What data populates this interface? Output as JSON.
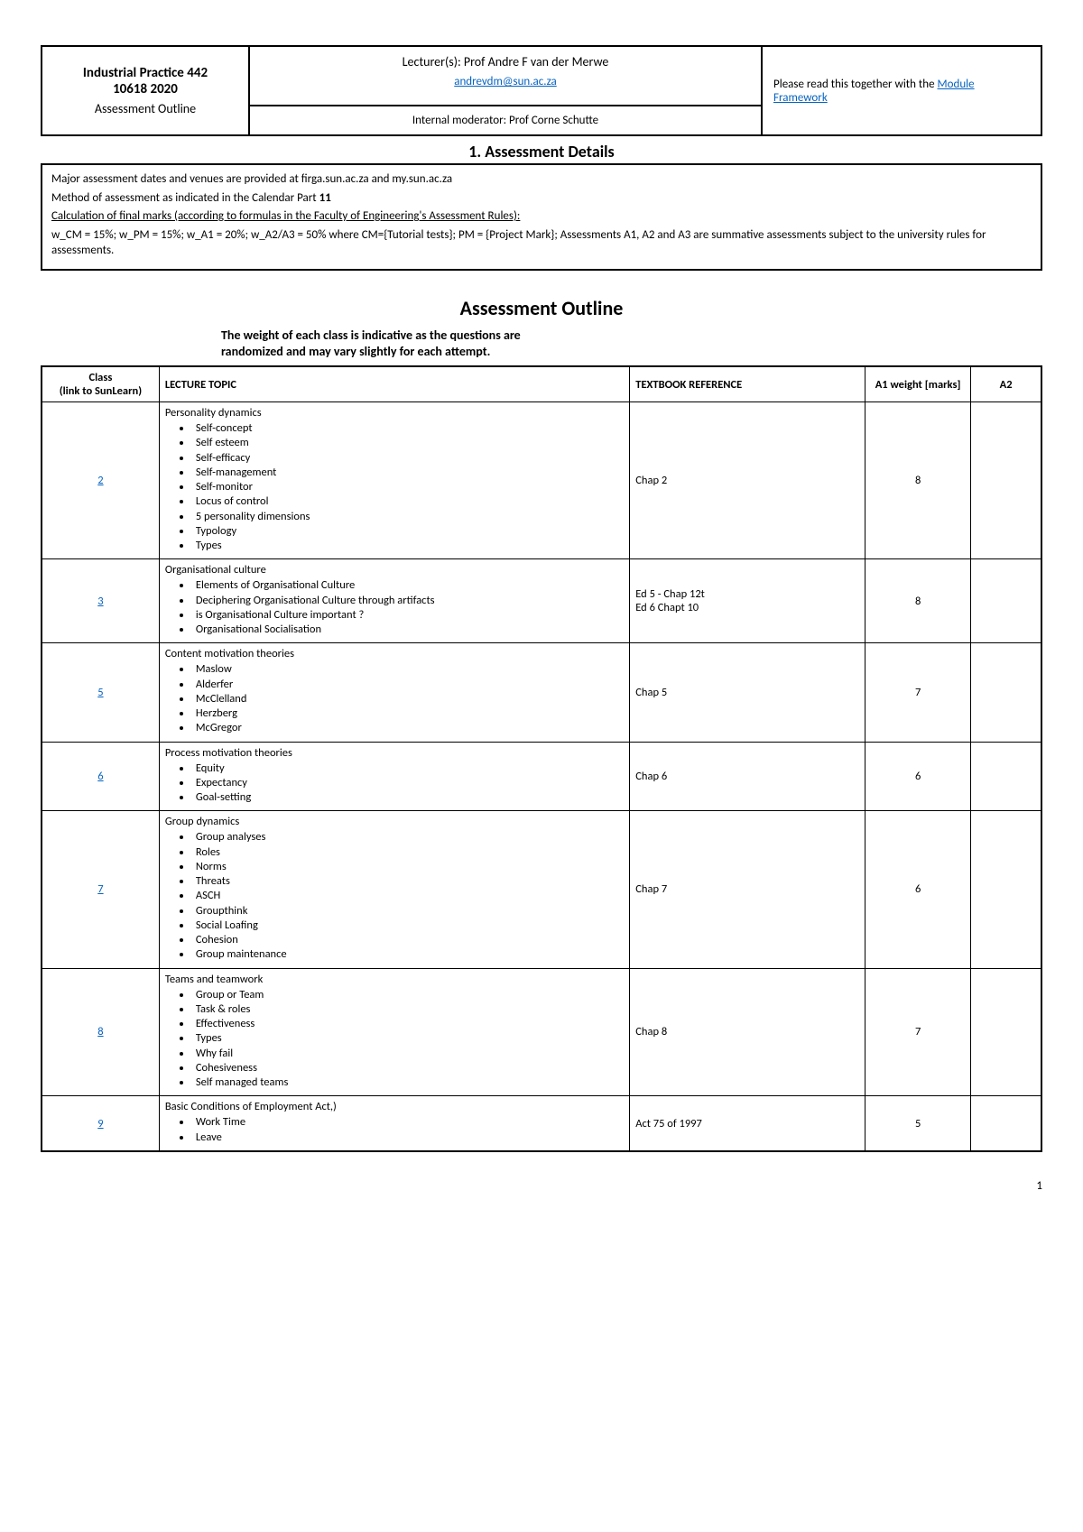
{
  "header": {
    "course_title": "Industrial Practice 442",
    "course_code": "10618 2020",
    "doc_type": "Assessment Outline",
    "lecturer_label": "Lecturer(s): Prof Andre F van der Merwe",
    "lecturer_email": "andrevdm@sun.ac.za",
    "moderator_label": "Internal moderator: Prof Corne Schutte",
    "right_text_pre": "Please read this together with the ",
    "right_link": "Module Framework"
  },
  "section1_title": "1.  Assessment Details",
  "details": {
    "line1": "Major assessment dates and venues are provided at firga.sun.ac.za and my.sun.ac.za",
    "line2_pre": "Method of assessment as indicated in the Calendar Part ",
    "line2_bold": "11",
    "line3": "Calculation of final marks (according to formulas in the Faculty of Engineering's Assessment Rules):",
    "line4": "w_CM = 15%; w_PM = 15%; w_A1 = 20%; w_A2/A3 = 50% where CM={Tutorial tests}; PM = {Project Mark}; Assessments A1, A2 and A3 are summative assessments subject to the university rules for assessments."
  },
  "outline_title": "Assessment Outline",
  "outline_sub1": "The weight of each class is indicative as the questions are",
  "outline_sub2": "randomized and may vary slightly for each attempt.",
  "columns": {
    "class": "Class\n(link to SunLearn)",
    "topic": "LECTURE TOPIC",
    "ref": "TEXTBOOK REFERENCE",
    "a1": "A1 weight [marks]",
    "a2": "A2"
  },
  "rows": [
    {
      "class": "2",
      "topic_title": "Personality dynamics",
      "bullets": [
        "Self-concept",
        "Self esteem",
        "Self-efficacy",
        "Self-management",
        "Self-monitor",
        "Locus of control",
        "5 personality dimensions",
        "Typology",
        "Types"
      ],
      "ref": "Chap 2",
      "a1": "8",
      "a2": ""
    },
    {
      "class": "3",
      "topic_title": "Organisational culture",
      "bullets": [
        "Elements of Organisational Culture",
        "Deciphering Organisational Culture through artifacts",
        "is Organisational Culture important ?",
        "Organisational Socialisation"
      ],
      "ref": "Ed 5 - Chap 12t\nEd 6 Chapt 10",
      "a1": "8",
      "a2": ""
    },
    {
      "class": "5",
      "topic_title": "Content motivation theories",
      "bullets": [
        "Maslow",
        "Alderfer",
        "McClelland",
        "Herzberg",
        "McGregor"
      ],
      "ref": "Chap 5",
      "a1": "7",
      "a2": ""
    },
    {
      "class": "6",
      "topic_title": "Process motivation theories",
      "bullets": [
        "Equity",
        "Expectancy",
        "Goal-setting"
      ],
      "ref": "Chap 6",
      "a1": "6",
      "a2": ""
    },
    {
      "class": "7",
      "topic_title": "Group dynamics",
      "bullets": [
        "Group analyses",
        "Roles",
        "Norms",
        "Threats",
        "ASCH",
        "Groupthink",
        "Social Loafing",
        "Cohesion",
        "Group maintenance"
      ],
      "ref": "Chap 7",
      "a1": "6",
      "a2": ""
    },
    {
      "class": "8",
      "topic_title": "Teams and teamwork",
      "bullets": [
        "Group or Team",
        "Task & roles",
        "Effectiveness",
        "Types",
        "Why fail",
        "Cohesiveness",
        "Self managed teams"
      ],
      "ref": "Chap 8",
      "a1": "7",
      "a2": ""
    },
    {
      "class": "9",
      "topic_title": "Basic Conditions of Employment Act,)",
      "bullets": [
        "Work Time",
        "Leave"
      ],
      "ref": "Act 75 of 1997",
      "a1": "5",
      "a2": ""
    }
  ],
  "page_number": "1"
}
